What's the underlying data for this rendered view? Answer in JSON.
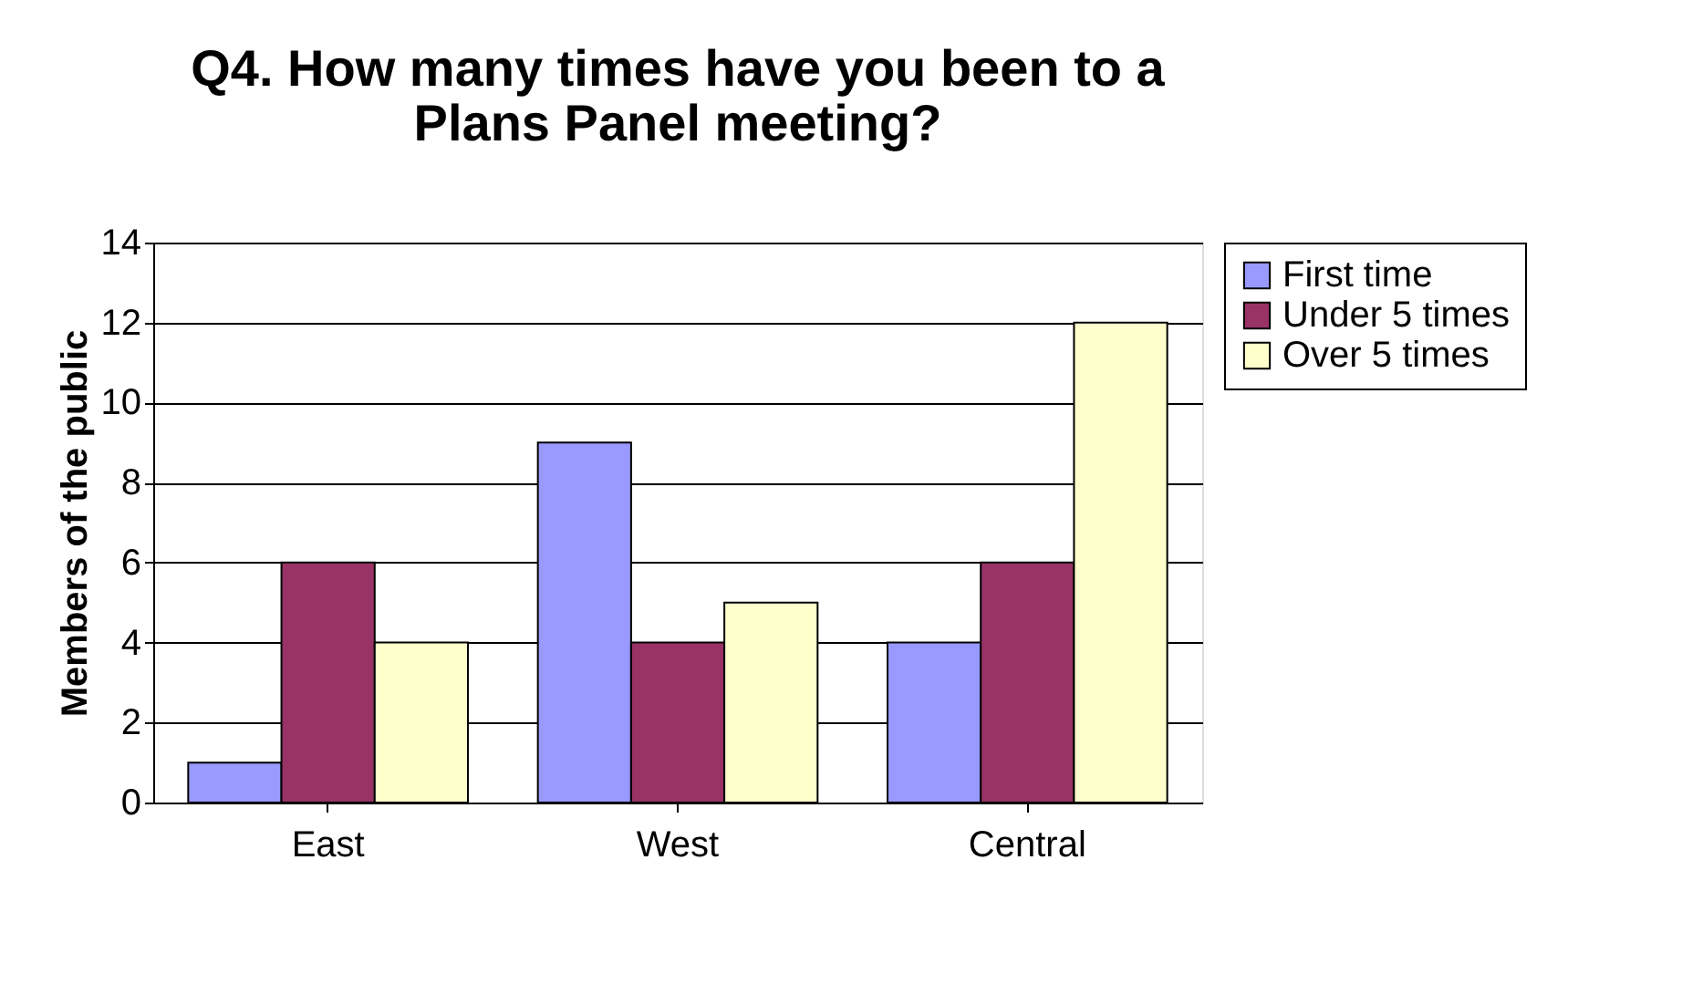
{
  "chart_data": {
    "type": "bar",
    "title": "Q4.  How many times have you been to a Plans Panel meeting?",
    "ylabel": "Members of the public",
    "categories": [
      "East",
      "West",
      "Central"
    ],
    "series": [
      {
        "name": "First time",
        "color": "#9999ff",
        "values": [
          1,
          9,
          4
        ]
      },
      {
        "name": "Under 5 times",
        "color": "#993366",
        "values": [
          6,
          4,
          6
        ]
      },
      {
        "name": "Over 5 times",
        "color": "#ffffcc",
        "values": [
          4,
          5,
          12
        ]
      }
    ],
    "ylim": [
      0,
      14
    ],
    "yticks": [
      0,
      2,
      4,
      6,
      8,
      10,
      12,
      14
    ],
    "grid": "y",
    "legend": "right"
  }
}
